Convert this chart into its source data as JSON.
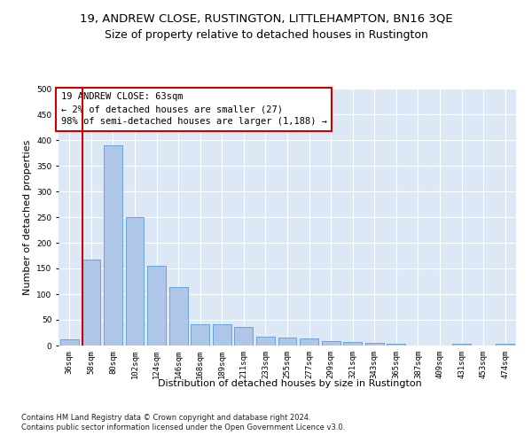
{
  "title": "19, ANDREW CLOSE, RUSTINGTON, LITTLEHAMPTON, BN16 3QE",
  "subtitle": "Size of property relative to detached houses in Rustington",
  "xlabel": "Distribution of detached houses by size in Rustington",
  "ylabel": "Number of detached properties",
  "categories": [
    "36sqm",
    "58sqm",
    "80sqm",
    "102sqm",
    "124sqm",
    "146sqm",
    "168sqm",
    "189sqm",
    "211sqm",
    "233sqm",
    "255sqm",
    "277sqm",
    "299sqm",
    "321sqm",
    "343sqm",
    "365sqm",
    "387sqm",
    "409sqm",
    "431sqm",
    "453sqm",
    "474sqm"
  ],
  "values": [
    12,
    167,
    390,
    250,
    155,
    113,
    42,
    42,
    37,
    18,
    15,
    14,
    8,
    7,
    5,
    3,
    0,
    0,
    3,
    0,
    4
  ],
  "bar_color": "#aec6e8",
  "bar_edge_color": "#5b9bd5",
  "vline_color": "#cc0000",
  "vline_x_index": 1,
  "annotation_text": "19 ANDREW CLOSE: 63sqm\n← 2% of detached houses are smaller (27)\n98% of semi-detached houses are larger (1,188) →",
  "annotation_box_color": "#ffffff",
  "annotation_box_edge": "#cc0000",
  "ylim": [
    0,
    500
  ],
  "yticks": [
    0,
    50,
    100,
    150,
    200,
    250,
    300,
    350,
    400,
    450,
    500
  ],
  "footer": "Contains HM Land Registry data © Crown copyright and database right 2024.\nContains public sector information licensed under the Open Government Licence v3.0.",
  "background_color": "#dce8f5",
  "fig_background": "#ffffff",
  "title_fontsize": 9.5,
  "xlabel_fontsize": 8,
  "ylabel_fontsize": 8,
  "tick_fontsize": 6.5,
  "annotation_fontsize": 7.5,
  "footer_fontsize": 6.0
}
